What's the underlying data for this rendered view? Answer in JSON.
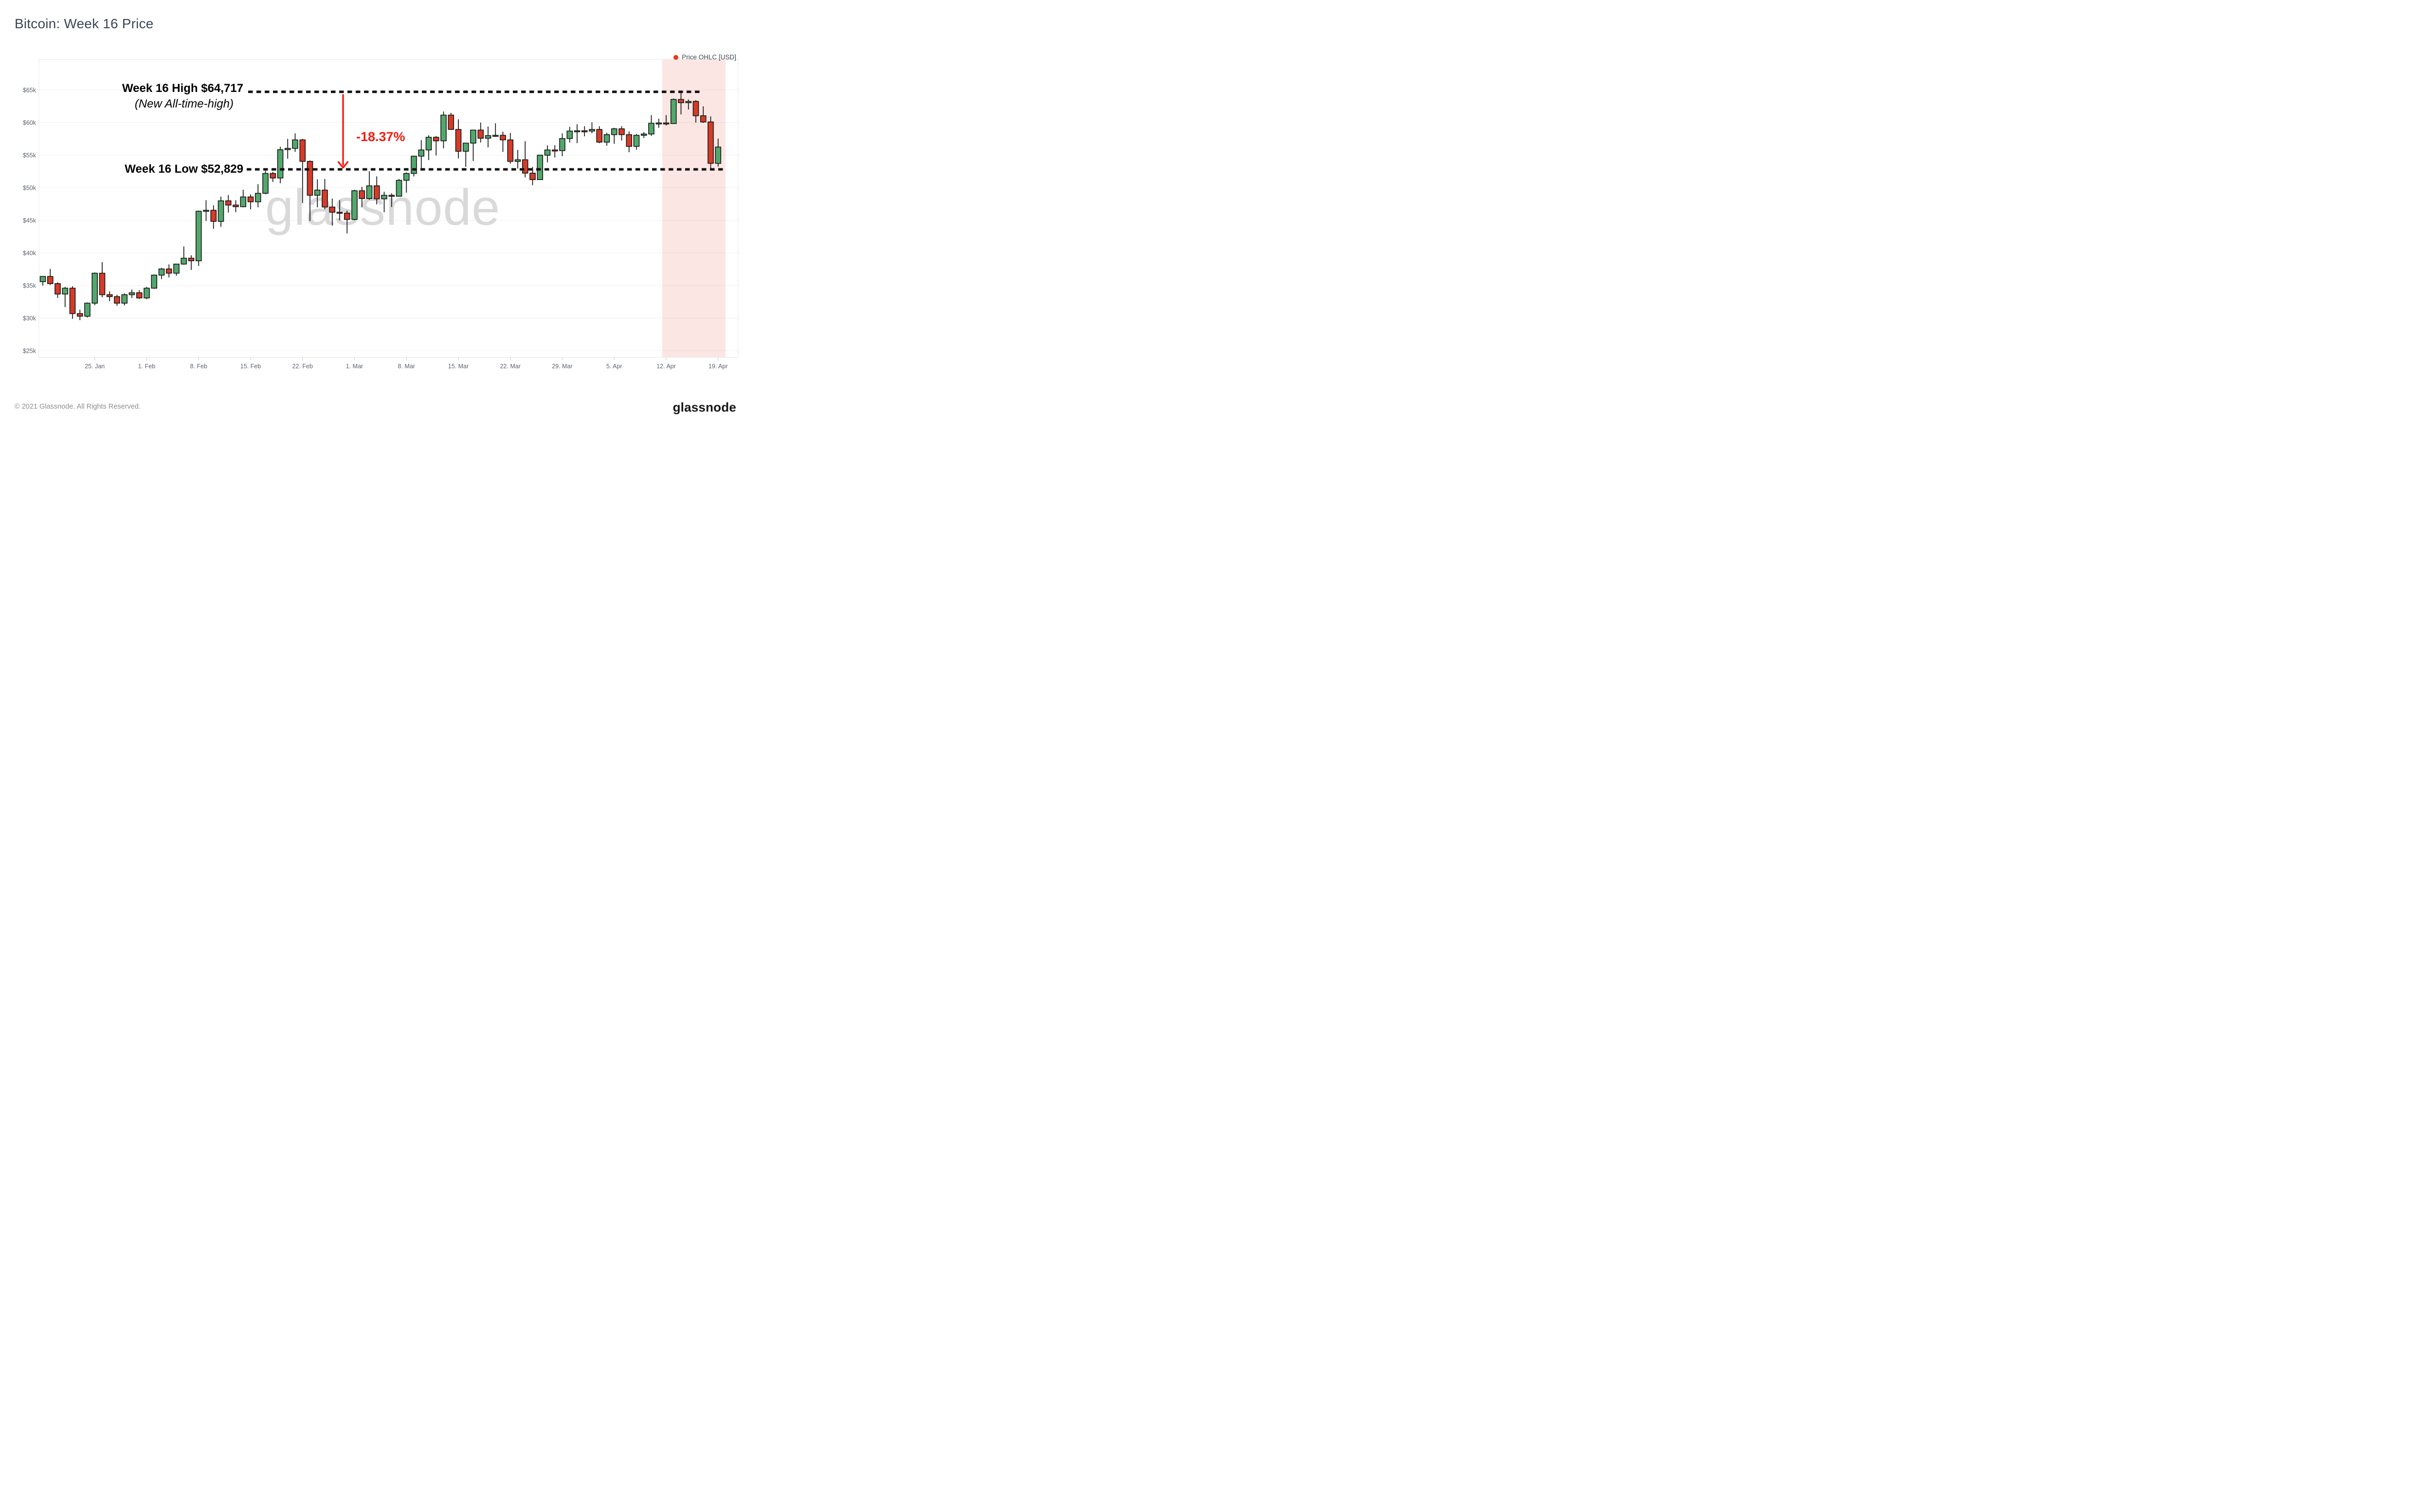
{
  "title": "Bitcoin: Week 16 Price",
  "legend": {
    "label": "Price OHLC [USD]",
    "dot_color": "#e43b1f"
  },
  "annotations": {
    "high": {
      "line1": "Week 16 High $64,717",
      "line2": "(New All-time-high)",
      "value": 64717
    },
    "low": {
      "label": "Week 16 Low $52,829",
      "value": 52829
    },
    "drop": {
      "label": "-18.37%",
      "color": "#f31c13"
    }
  },
  "watermark": "glassnode",
  "footer": {
    "copyright": "© 2021 Glassnode. All Rights Reserved.",
    "logo": "glassnode"
  },
  "colors": {
    "up": "#52a86c",
    "down": "#d63b28",
    "outline": "#151515",
    "band": "#fce6e3",
    "grid": "#ededed",
    "dotted": "#0f0f0f",
    "axis_text": "#5b6470",
    "watermark": "#d9d9d9"
  },
  "chart_data": {
    "type": "candlestick",
    "title": "Bitcoin: Week 16 Price",
    "series_label": "Price OHLC [USD]",
    "currency": "USD",
    "y_axis": {
      "tick_labels": [
        "$65k",
        "$60k",
        "$55k",
        "$50k",
        "$45k",
        "$40k",
        "$35k",
        "$30k",
        "$25k"
      ],
      "tick_values": [
        65000,
        60000,
        55000,
        50000,
        45000,
        40000,
        35000,
        30000,
        25000
      ],
      "range": [
        23500,
        68600
      ],
      "grid": true
    },
    "x_axis": {
      "tick_labels": [
        "25. Jan",
        "1. Feb",
        "8. Feb",
        "15. Feb",
        "22. Feb",
        "1. Mar",
        "8. Mar",
        "15. Mar",
        "22. Mar",
        "29. Mar",
        "5. Apr",
        "12. Apr",
        "19. Apr"
      ],
      "tick_indices": [
        7,
        14,
        21,
        28,
        35,
        42,
        49,
        56,
        63,
        70,
        77,
        84,
        91
      ]
    },
    "highlight_band": {
      "label": "Week 16 (12. Apr - 19. Apr)",
      "from_index": 84,
      "to_index": 91
    },
    "reference_lines": [
      {
        "name": "week16-high",
        "value": 64717
      },
      {
        "name": "week16-low",
        "value": 52829
      }
    ],
    "drop_arrow": {
      "from_value": 64717,
      "to_value": 52829,
      "percent": -18.37,
      "at_index": 40
    },
    "columns": [
      "date",
      "open",
      "high",
      "low",
      "close"
    ],
    "candles": [
      [
        "Jan 18",
        35600,
        36300,
        35000,
        36400
      ],
      [
        "Jan 19",
        36400,
        37550,
        35100,
        35300
      ],
      [
        "Jan 20",
        35300,
        35500,
        33100,
        33700
      ],
      [
        "Jan 21",
        33700,
        34800,
        31700,
        34600
      ],
      [
        "Jan 22",
        34600,
        34900,
        29900,
        30700
      ],
      [
        "Jan 23",
        30700,
        31300,
        29700,
        30300
      ],
      [
        "Jan 24",
        30300,
        32400,
        30100,
        32300
      ],
      [
        "Jan 25",
        32300,
        37000,
        32000,
        36900
      ],
      [
        "Jan 26",
        36900,
        38600,
        33200,
        33600
      ],
      [
        "Jan 27",
        33600,
        34100,
        32600,
        33300
      ],
      [
        "Jan 28",
        33300,
        33600,
        31900,
        32300
      ],
      [
        "Jan 29",
        32300,
        33800,
        31950,
        33600
      ],
      [
        "Jan 30",
        33600,
        34400,
        33100,
        33900
      ],
      [
        "Jan 31",
        33900,
        34300,
        32950,
        33100
      ],
      [
        "Feb 1",
        33100,
        34800,
        32900,
        34600
      ],
      [
        "Feb 2",
        34600,
        36700,
        34500,
        36600
      ],
      [
        "Feb 3",
        36600,
        37700,
        36000,
        37550
      ],
      [
        "Feb 4",
        37550,
        38250,
        36250,
        36900
      ],
      [
        "Feb 5",
        36900,
        38350,
        36500,
        38300
      ],
      [
        "Feb 6",
        38300,
        41000,
        38200,
        39200
      ],
      [
        "Feb 7",
        39200,
        39650,
        37400,
        38800
      ],
      [
        "Feb 8",
        38800,
        46500,
        38000,
        46400
      ],
      [
        "Feb 9",
        46400,
        48100,
        44900,
        46550
      ],
      [
        "Feb 10",
        46550,
        47300,
        43700,
        44850
      ],
      [
        "Feb 11",
        44850,
        48650,
        44000,
        48000
      ],
      [
        "Feb 12",
        48000,
        48900,
        46200,
        47350
      ],
      [
        "Feb 13",
        47350,
        48100,
        46250,
        47100
      ],
      [
        "Feb 14",
        47100,
        49700,
        47000,
        48600
      ],
      [
        "Feb 15",
        48600,
        49000,
        46700,
        47850
      ],
      [
        "Feb 16",
        47850,
        50550,
        47000,
        49150
      ],
      [
        "Feb 17",
        49150,
        52600,
        49000,
        52200
      ],
      [
        "Feb 18",
        52200,
        52450,
        50900,
        51500
      ],
      [
        "Feb 19",
        51500,
        56300,
        50700,
        55850
      ],
      [
        "Feb 20",
        55850,
        57500,
        54450,
        56050
      ],
      [
        "Feb 21",
        56050,
        58350,
        55500,
        57350
      ],
      [
        "Feb 22",
        57350,
        57500,
        47650,
        54050
      ],
      [
        "Feb 23",
        54050,
        54200,
        44900,
        48850
      ],
      [
        "Feb 24",
        48850,
        51300,
        47000,
        49650
      ],
      [
        "Feb 25",
        49650,
        51350,
        46700,
        47050
      ],
      [
        "Feb 26",
        47050,
        48350,
        44200,
        46250
      ],
      [
        "Feb 27",
        46250,
        48100,
        45000,
        46100
      ],
      [
        "Feb 28",
        46100,
        46500,
        43000,
        45150
      ],
      [
        "Mar 1",
        45150,
        49700,
        45000,
        49550
      ],
      [
        "Mar 2",
        49550,
        50150,
        47000,
        48350
      ],
      [
        "Mar 3",
        48350,
        52550,
        48150,
        50300
      ],
      [
        "Mar 4",
        50300,
        51750,
        47450,
        48300
      ],
      [
        "Mar 5",
        48300,
        49400,
        46250,
        48850
      ],
      [
        "Mar 6",
        48850,
        49150,
        47050,
        48700
      ],
      [
        "Mar 7",
        48700,
        51350,
        48650,
        51150
      ],
      [
        "Mar 8",
        51150,
        52350,
        49250,
        52200
      ],
      [
        "Mar 9",
        52200,
        54850,
        51750,
        54850
      ],
      [
        "Mar 10",
        54850,
        57300,
        53000,
        55800
      ],
      [
        "Mar 11",
        55800,
        58050,
        54250,
        57750
      ],
      [
        "Mar 12",
        57750,
        57950,
        54950,
        57200
      ],
      [
        "Mar 13",
        57200,
        61700,
        56050,
        61150
      ],
      [
        "Mar 14",
        61150,
        61500,
        58900,
        58950
      ],
      [
        "Mar 15",
        58950,
        60500,
        54500,
        55600
      ],
      [
        "Mar 16",
        55600,
        56850,
        53200,
        56850
      ],
      [
        "Mar 17",
        56850,
        58900,
        54100,
        58850
      ],
      [
        "Mar 18",
        58850,
        60000,
        56950,
        57600
      ],
      [
        "Mar 19",
        57600,
        59400,
        56200,
        58000
      ],
      [
        "Mar 20",
        58000,
        59900,
        57800,
        58050
      ],
      [
        "Mar 21",
        58050,
        58600,
        55500,
        57350
      ],
      [
        "Mar 22",
        57350,
        58400,
        53700,
        54050
      ],
      [
        "Mar 23",
        54050,
        55800,
        52950,
        54300
      ],
      [
        "Mar 24",
        54300,
        57150,
        51600,
        52250
      ],
      [
        "Mar 25",
        52250,
        53200,
        50400,
        51250
      ],
      [
        "Mar 26",
        51250,
        55050,
        51200,
        55000
      ],
      [
        "Mar 27",
        55000,
        56500,
        53900,
        55800
      ],
      [
        "Mar 28",
        55800,
        56550,
        54650,
        55700
      ],
      [
        "Mar 29",
        55700,
        58350,
        54850,
        57550
      ],
      [
        "Mar 30",
        57550,
        59350,
        56950,
        58700
      ],
      [
        "Mar 31",
        58700,
        59750,
        56850,
        58750
      ],
      [
        "Apr 1",
        58750,
        59450,
        57900,
        58700
      ],
      [
        "Apr 2",
        58700,
        60050,
        58350,
        58950
      ],
      [
        "Apr 3",
        58950,
        59450,
        56850,
        57000
      ],
      [
        "Apr 4",
        57000,
        58450,
        56450,
        58150
      ],
      [
        "Apr 5",
        58150,
        59200,
        56750,
        59050
      ],
      [
        "Apr 6",
        59050,
        59450,
        57250,
        58150
      ],
      [
        "Apr 7",
        58150,
        58650,
        55450,
        56350
      ],
      [
        "Apr 8",
        56350,
        58250,
        55850,
        58050
      ],
      [
        "Apr 9",
        58050,
        58550,
        57650,
        58250
      ],
      [
        "Apr 10",
        58250,
        61150,
        57950,
        59900
      ],
      [
        "Apr 11",
        59900,
        60600,
        59200,
        59950
      ],
      [
        "Apr 12",
        59950,
        61150,
        59550,
        59850
      ],
      [
        "Apr 13",
        59850,
        63700,
        59800,
        63550
      ],
      [
        "Apr 14",
        63550,
        64717,
        61250,
        63050
      ],
      [
        "Apr 15",
        63050,
        63550,
        62000,
        63250
      ],
      [
        "Apr 16",
        63250,
        63450,
        60000,
        61050
      ],
      [
        "Apr 17",
        61050,
        62500,
        59950,
        60100
      ],
      [
        "Apr 18",
        60100,
        60950,
        52829,
        53750
      ],
      [
        "Apr 19",
        53750,
        57550,
        53250,
        56250
      ]
    ]
  }
}
